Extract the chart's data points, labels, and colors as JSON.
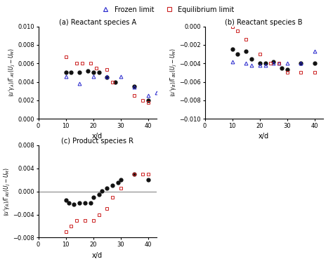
{
  "legend_frozen": "Frozen limit",
  "legend_equil": "Equilibrium limit",
  "subplot_a_title": "(a) Reactant species A",
  "subplot_b_title": "(b) Reactant species B",
  "subplot_c_title": "(c) Product species R",
  "xlabel": "x/d",
  "colors": {
    "frozen": "#2222cc",
    "equil": "#cc2222",
    "dns": "#111111"
  },
  "panel_a": {
    "xlim": [
      0,
      43
    ],
    "ylim": [
      0,
      0.01
    ],
    "yticks": [
      0,
      0.002,
      0.004,
      0.006,
      0.008,
      0.01
    ],
    "frozen_x": [
      10,
      15,
      20,
      25,
      30,
      35,
      40,
      43
    ],
    "frozen_y": [
      0.0046,
      0.0038,
      0.0046,
      0.0046,
      0.0046,
      0.0034,
      0.0025,
      0.0028
    ],
    "equil_x": [
      10,
      14,
      16,
      19,
      21,
      25,
      27,
      35,
      38,
      40
    ],
    "equil_y": [
      0.0067,
      0.006,
      0.006,
      0.006,
      0.0055,
      0.0053,
      0.004,
      0.0025,
      0.002,
      0.0018
    ],
    "dns_x": [
      10,
      12,
      15,
      18,
      20,
      22,
      25,
      28,
      35,
      40
    ],
    "dns_y": [
      0.005,
      0.005,
      0.005,
      0.0052,
      0.005,
      0.005,
      0.0045,
      0.004,
      0.0035,
      0.002
    ]
  },
  "panel_b": {
    "xlim": [
      0,
      43
    ],
    "ylim": [
      -0.01,
      0
    ],
    "yticks": [
      -0.01,
      -0.008,
      -0.006,
      -0.004,
      -0.002,
      0
    ],
    "frozen_x": [
      10,
      15,
      17,
      20,
      22,
      25,
      27,
      30,
      35,
      40
    ],
    "frozen_y": [
      -0.0038,
      -0.004,
      -0.0042,
      -0.0042,
      -0.0042,
      -0.004,
      -0.004,
      -0.004,
      -0.004,
      -0.0027
    ],
    "equil_x": [
      10,
      12,
      15,
      20,
      24,
      27,
      30,
      35,
      40
    ],
    "equil_y": [
      -5e-05,
      -0.0005,
      -0.0014,
      -0.003,
      -0.004,
      -0.004,
      -0.005,
      -0.005,
      -0.005
    ],
    "dns_x": [
      10,
      12,
      15,
      17,
      20,
      22,
      25,
      28,
      30,
      35,
      40
    ],
    "dns_y": [
      -0.0025,
      -0.003,
      -0.0027,
      -0.0035,
      -0.004,
      -0.004,
      -0.0038,
      -0.0045,
      -0.0047,
      -0.004,
      -0.004
    ]
  },
  "panel_c": {
    "xlim": [
      0,
      43
    ],
    "ylim": [
      -0.008,
      0.008
    ],
    "yticks": [
      -0.008,
      -0.004,
      0,
      0.004,
      0.008
    ],
    "equil_x": [
      10,
      12,
      14,
      17,
      20,
      22,
      25,
      27,
      30,
      35,
      38,
      40
    ],
    "equil_y": [
      -0.007,
      -0.006,
      -0.005,
      -0.005,
      -0.005,
      -0.004,
      -0.003,
      -0.001,
      0.0005,
      0.003,
      0.003,
      0.003
    ],
    "dns_x": [
      10,
      11,
      13,
      15,
      17,
      19,
      20,
      22,
      23,
      25,
      27,
      29,
      30,
      35,
      40
    ],
    "dns_y": [
      -0.0015,
      -0.002,
      -0.0022,
      -0.002,
      -0.002,
      -0.002,
      -0.001,
      -0.0005,
      0.0001,
      0.0005,
      0.001,
      0.0015,
      0.002,
      0.003,
      0.002
    ]
  }
}
